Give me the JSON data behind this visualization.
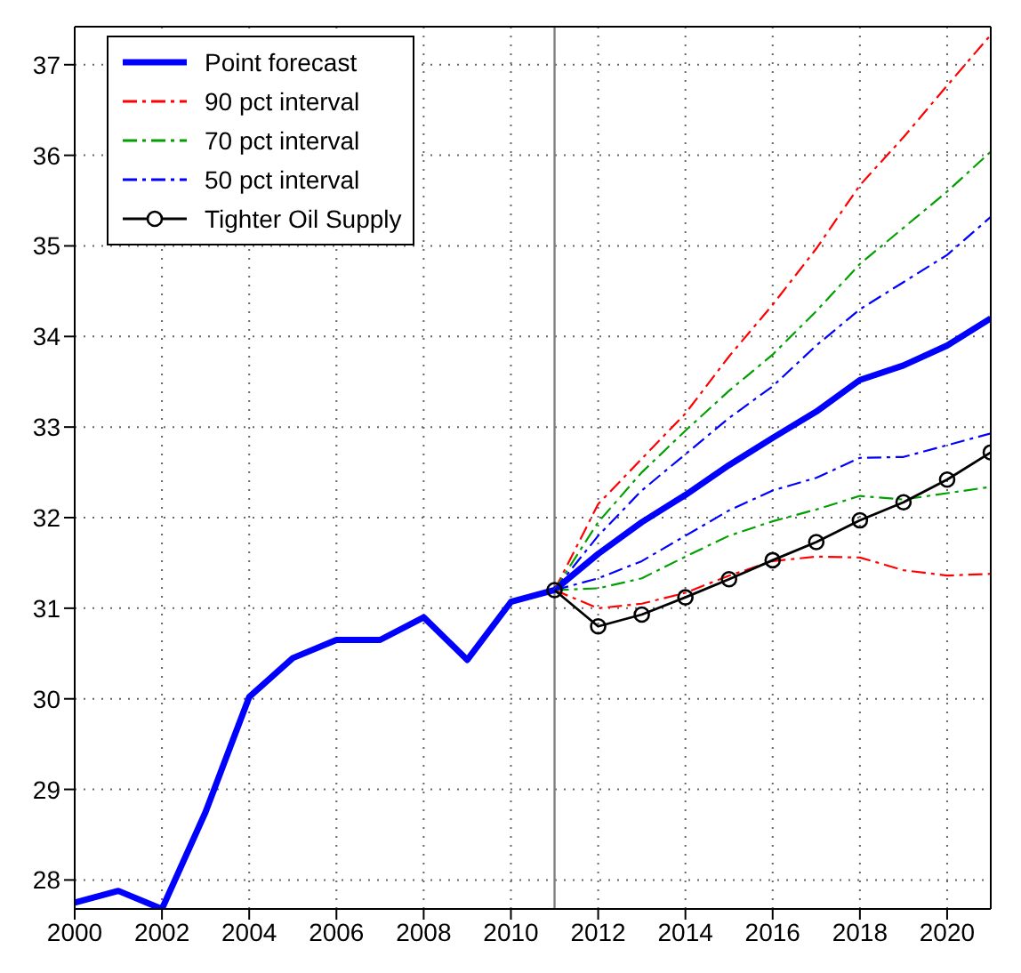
{
  "chart_data": {
    "type": "line",
    "xlim": [
      2000,
      2021
    ],
    "xticks": [
      2000,
      2002,
      2004,
      2006,
      2008,
      2010,
      2012,
      2014,
      2016,
      2018,
      2020
    ],
    "ylim": [
      27.68,
      37.42
    ],
    "yticks": [
      28,
      29,
      30,
      31,
      32,
      33,
      34,
      35,
      36,
      37
    ],
    "grid": true,
    "legend": "top left",
    "marker": "none",
    "line_style": "solid",
    "ref_lines": [
      {
        "axis": "x",
        "value": 2011,
        "color": "#808080"
      }
    ],
    "series": [
      {
        "name": "Point forecast",
        "color": "#0000ff",
        "x": [
          2000,
          2001,
          2002,
          2003,
          2004,
          2005,
          2006,
          2007,
          2008,
          2009,
          2010,
          2011,
          2012,
          2013,
          2014,
          2015,
          2016,
          2017,
          2018,
          2019,
          2020,
          2021
        ],
        "values": [
          27.75,
          27.88,
          27.68,
          28.75,
          30.02,
          30.45,
          30.65,
          30.65,
          30.9,
          30.43,
          31.07,
          31.2,
          31.6,
          31.95,
          32.25,
          32.58,
          32.88,
          33.17,
          33.52,
          33.68,
          33.9,
          34.2
        ]
      },
      {
        "name": "90 pct interval",
        "color": "#ff0000",
        "line_style": "dashed",
        "x": [
          2011,
          2012,
          2013,
          2014,
          2015,
          2016,
          2017,
          2018,
          2019,
          2020,
          2021
        ],
        "values": [
          31.2,
          32.15,
          32.65,
          33.15,
          33.78,
          34.35,
          34.97,
          35.67,
          36.2,
          36.77,
          37.33
        ]
      },
      {
        "color": "#ff0000",
        "line_style": "dashed",
        "x": [
          2011,
          2012,
          2013,
          2014,
          2015,
          2016,
          2017,
          2018,
          2019,
          2020,
          2021
        ],
        "values": [
          31.2,
          31.0,
          31.05,
          31.17,
          31.36,
          31.52,
          31.57,
          31.56,
          31.42,
          31.36,
          31.38
        ]
      },
      {
        "name": "70 pct interval",
        "color": "#00a000",
        "line_style": "dashed",
        "x": [
          2011,
          2012,
          2013,
          2014,
          2015,
          2016,
          2017,
          2018,
          2019,
          2020,
          2021
        ],
        "values": [
          31.2,
          31.95,
          32.5,
          32.96,
          33.4,
          33.8,
          34.28,
          34.8,
          35.2,
          35.6,
          36.04
        ]
      },
      {
        "color": "#00a000",
        "line_style": "dashed",
        "x": [
          2011,
          2012,
          2013,
          2014,
          2015,
          2016,
          2017,
          2018,
          2019,
          2020,
          2021
        ],
        "values": [
          31.2,
          31.22,
          31.33,
          31.57,
          31.8,
          31.96,
          32.09,
          32.24,
          32.2,
          32.27,
          32.34
        ]
      },
      {
        "name": "50 pct interval",
        "color": "#0000ff",
        "line_style": "dashed",
        "x": [
          2011,
          2012,
          2013,
          2014,
          2015,
          2016,
          2017,
          2018,
          2019,
          2020,
          2021
        ],
        "values": [
          31.2,
          31.8,
          32.3,
          32.7,
          33.1,
          33.45,
          33.9,
          34.3,
          34.6,
          34.9,
          35.32
        ]
      },
      {
        "color": "#0000ff",
        "line_style": "dashed",
        "x": [
          2011,
          2012,
          2013,
          2014,
          2015,
          2016,
          2017,
          2018,
          2019,
          2020,
          2021
        ],
        "values": [
          31.2,
          31.33,
          31.52,
          31.8,
          32.08,
          32.3,
          32.44,
          32.66,
          32.67,
          32.8,
          32.93
        ]
      },
      {
        "name": "Tighter Oil Supply",
        "color": "#000000",
        "marker": "circle",
        "x": [
          2011,
          2012,
          2013,
          2014,
          2015,
          2016,
          2017,
          2018,
          2019,
          2020,
          2021
        ],
        "values": [
          31.2,
          30.8,
          30.93,
          31.12,
          31.32,
          31.53,
          31.73,
          31.97,
          32.17,
          32.42,
          32.72
        ]
      }
    ]
  }
}
